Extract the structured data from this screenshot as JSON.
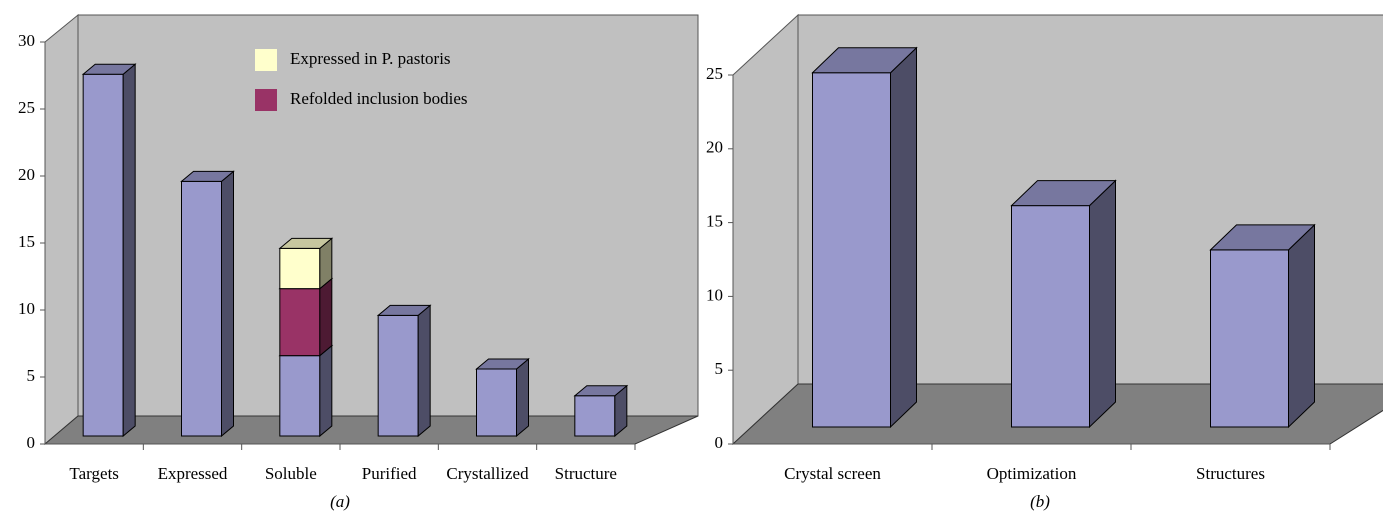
{
  "chart_data": [
    {
      "type": "bar3d",
      "stacked": true,
      "caption": "(a)",
      "categories": [
        "Targets",
        "Expressed",
        "Soluble",
        "Purified",
        "Crystallized",
        "Structure"
      ],
      "series": [
        {
          "color": "#9999cc",
          "values": [
            27,
            19,
            6,
            9,
            5,
            3
          ]
        },
        {
          "name": "Refolded inclusion bodies",
          "color": "#993366",
          "values": [
            null,
            null,
            5,
            null,
            null,
            null
          ]
        },
        {
          "name": "Expressed in P. pastoris",
          "color": "#ffffcc",
          "values": [
            null,
            null,
            3,
            null,
            null,
            null
          ]
        }
      ],
      "ylim": [
        0,
        30
      ],
      "yticks": [
        0,
        5,
        10,
        15,
        20,
        25,
        30
      ],
      "legend": "top-center"
    },
    {
      "type": "bar3d",
      "caption": "(b)",
      "categories": [
        "Crystal screen",
        "Optimization",
        "Structures"
      ],
      "series": [
        {
          "color": "#9999cc",
          "values": [
            24,
            15,
            12
          ]
        }
      ],
      "ylim": [
        0,
        25
      ],
      "yticks": [
        0,
        5,
        10,
        15,
        20,
        25
      ]
    }
  ]
}
